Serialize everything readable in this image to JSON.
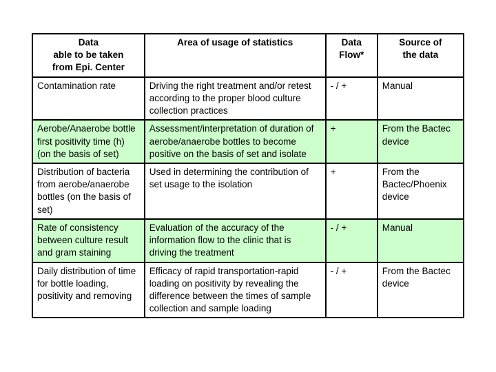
{
  "table": {
    "colors": {
      "row_white": "#ffffff",
      "row_green": "#ccffcc",
      "border": "#000000",
      "text": "#000000"
    },
    "font_size_pt": 10,
    "columns": [
      {
        "key": "data",
        "width_pct": 26,
        "align": "center"
      },
      {
        "key": "area",
        "width_pct": 42,
        "align": "center"
      },
      {
        "key": "flow",
        "width_pct": 12,
        "align": "center"
      },
      {
        "key": "source",
        "width_pct": 20,
        "align": "center"
      }
    ],
    "header": {
      "data": "Data\nable to be taken\nfrom Epi. Center",
      "area": "Area of usage of statistics",
      "flow": "Data\nFlow*",
      "source": "Source of\nthe data"
    },
    "rows": [
      {
        "bg": "white",
        "data": "Contamination rate",
        "area": "Driving the right treatment and/or retest according to the proper blood culture collection practices",
        "flow": "- / +",
        "source": "Manual"
      },
      {
        "bg": "green",
        "data": "Aerobe/Anaerobe bottle first positivity time (h) (on the basis of set)",
        "area": "Assessment/interpretation of duration of aerobe/anaerobe bottles to become positive on the basis of set and isolate",
        "flow": "+",
        "source": "From the Bactec device"
      },
      {
        "bg": "white",
        "data": "Distribution of bacteria from aerobe/anaerobe bottles (on the basis of set)",
        "area": "Used in determining the contribution of set usage to the isolation",
        "flow": "+",
        "source": "From the Bactec/Phoenix device"
      },
      {
        "bg": "green",
        "data": "Rate of consistency between culture result and gram staining",
        "area": "Evaluation of the accuracy of the information flow to the clinic that is driving the treatment",
        "flow": " - / +",
        "source": "Manual"
      },
      {
        "bg": "white",
        "data": "Daily distribution of time for bottle loading, positivity and removing",
        "area": "Efficacy of rapid transportation-rapid loading on positivity by revealing the difference between the times of sample collection and sample loading",
        "flow": "- / +",
        "source": "From the Bactec device"
      }
    ]
  }
}
